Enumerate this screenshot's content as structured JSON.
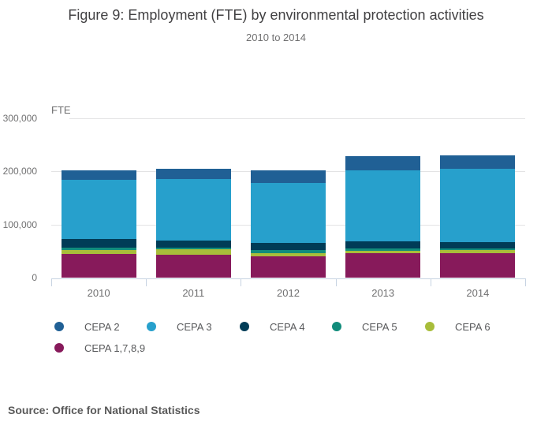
{
  "header": {
    "title": "Figure 9: Employment (FTE) by environmental protection activities",
    "subtitle": "2010 to 2014"
  },
  "chart_data": {
    "type": "bar",
    "stacked": true,
    "title": "Figure 9: Employment (FTE) by environmental protection activities",
    "subtitle": "2010 to 2014",
    "unit_label": "FTE",
    "xlabel": "",
    "ylabel": "FTE",
    "ylim": [
      0,
      300000
    ],
    "grid": true,
    "legend_position": "bottom",
    "categories": [
      "2010",
      "2011",
      "2012",
      "2013",
      "2014"
    ],
    "series_stack_order": "bottom-to-top",
    "series": [
      {
        "name": "CEPA 1,7,8,9",
        "color": "#871A5B",
        "values": [
          45000,
          43000,
          40000,
          46000,
          46000
        ]
      },
      {
        "name": "CEPA 6",
        "color": "#A8BD3A",
        "values": [
          7000,
          10000,
          6500,
          5000,
          6000
        ]
      },
      {
        "name": "CEPA 5",
        "color": "#118C7B",
        "values": [
          4500,
          4000,
          6000,
          4000,
          3500
        ]
      },
      {
        "name": "CEPA 4",
        "color": "#003C57",
        "values": [
          16000,
          12500,
          13500,
          14000,
          11500
        ]
      },
      {
        "name": "CEPA 3",
        "color": "#27A0CC",
        "values": [
          112000,
          116500,
          112500,
          133000,
          138500
        ]
      },
      {
        "name": "CEPA 2",
        "color": "#206095",
        "values": [
          17500,
          19500,
          23000,
          27000,
          24500
        ]
      }
    ],
    "totals": [
      202000,
      205500,
      201500,
      229000,
      230000
    ],
    "yticks": [
      {
        "value": 0,
        "label": "0"
      },
      {
        "value": 100000,
        "label": "100,000"
      },
      {
        "value": 200000,
        "label": "200,000"
      },
      {
        "value": 300000,
        "label": "300,000"
      }
    ],
    "legend": [
      {
        "label": "CEPA 2",
        "color": "#206095"
      },
      {
        "label": "CEPA 3",
        "color": "#27A0CC"
      },
      {
        "label": "CEPA 4",
        "color": "#003C57"
      },
      {
        "label": "CEPA 5",
        "color": "#118C7B"
      },
      {
        "label": "CEPA 6",
        "color": "#A8BD3A"
      },
      {
        "label": "CEPA 1,7,8,9",
        "color": "#871A5B"
      }
    ]
  },
  "footer": {
    "source": "Source: Office for National Statistics"
  }
}
